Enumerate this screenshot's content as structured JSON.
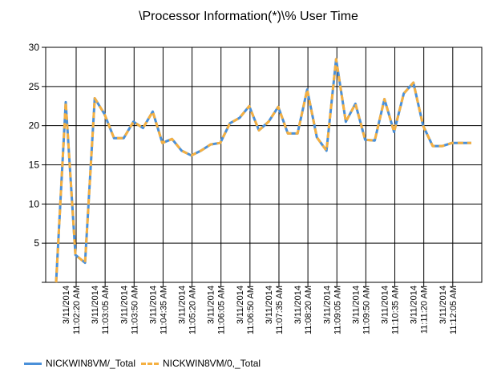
{
  "chart_data": {
    "type": "line",
    "title": "\\Processor Information(*)\\% User Time",
    "xlabel": "",
    "ylabel": "",
    "ylim": [
      0,
      30
    ],
    "yticks": [
      5,
      10,
      15,
      20,
      25,
      30
    ],
    "grid": true,
    "legend_placement": "bottom-left",
    "x": [
      "11:01:20",
      "11:01:35",
      "11:01:50",
      "11:02:05",
      "11:02:20",
      "11:02:35",
      "11:02:50",
      "11:03:05",
      "11:03:20",
      "11:03:35",
      "11:03:50",
      "11:04:05",
      "11:04:20",
      "11:04:35",
      "11:04:50",
      "11:05:05",
      "11:05:20",
      "11:05:35",
      "11:05:50",
      "11:06:05",
      "11:06:20",
      "11:06:35",
      "11:06:50",
      "11:07:05",
      "11:07:20",
      "11:07:35",
      "11:07:50",
      "11:08:05",
      "11:08:20",
      "11:08:35",
      "11:08:50",
      "11:09:05",
      "11:09:20",
      "11:09:35",
      "11:09:50",
      "11:10:05",
      "11:10:20",
      "11:10:35",
      "11:10:50",
      "11:11:05",
      "11:11:20",
      "11:11:35",
      "11:11:50",
      "11:12:05"
    ],
    "tick_labels": [
      {
        "date": "3/11/2014",
        "time": "11:02:20 AM"
      },
      {
        "date": "3/11/2014",
        "time": "11:03:05 AM"
      },
      {
        "date": "3/11/2014",
        "time": "11:03:50 AM"
      },
      {
        "date": "3/11/2014",
        "time": "11:04:35 AM"
      },
      {
        "date": "3/11/2014",
        "time": "11:05:20 AM"
      },
      {
        "date": "3/11/2014",
        "time": "11:06:05 AM"
      },
      {
        "date": "3/11/2014",
        "time": "11:06:50 AM"
      },
      {
        "date": "3/11/2014",
        "time": "11:07:35 AM"
      },
      {
        "date": "3/11/2014",
        "time": "11:08:20 AM"
      },
      {
        "date": "3/11/2014",
        "time": "11:09:05 AM"
      },
      {
        "date": "3/11/2014",
        "time": "11:09:50 AM"
      },
      {
        "date": "3/11/2014",
        "time": "11:10:35 AM"
      },
      {
        "date": "3/11/2014",
        "time": "11:11:20 AM"
      },
      {
        "date": "3/11/2014",
        "time": "11:12:05 AM"
      }
    ],
    "series": [
      {
        "name": "NICKWIN8VM/_Total",
        "color": "#4a90d9",
        "style": "solid",
        "values": [
          0,
          23,
          3.5,
          2.5,
          23.5,
          21.5,
          18.4,
          18.4,
          20.5,
          19.7,
          21.8,
          17.8,
          18.3,
          16.8,
          16.2,
          16.8,
          17.6,
          17.8,
          20.3,
          21.0,
          22.5,
          19.4,
          20.5,
          22.4,
          19.0,
          19.0,
          24.6,
          18.5,
          16.8,
          28.5,
          20.5,
          22.8,
          18.2,
          18.1,
          23.4,
          19.2,
          24.1,
          25.5,
          20.0,
          17.4,
          17.4,
          17.8,
          17.8,
          17.8
        ]
      },
      {
        "name": "NICKWIN8VM/0,_Total",
        "color": "#f5b041",
        "style": "dashed",
        "values": [
          0,
          23,
          3.5,
          2.5,
          23.5,
          21.5,
          18.4,
          18.4,
          20.5,
          19.7,
          21.8,
          17.8,
          18.3,
          16.8,
          16.2,
          16.8,
          17.6,
          17.8,
          20.3,
          21.0,
          22.5,
          19.4,
          20.5,
          22.4,
          19.0,
          19.0,
          24.6,
          18.5,
          16.8,
          28.5,
          20.5,
          22.8,
          18.2,
          18.1,
          23.4,
          19.2,
          24.1,
          25.5,
          20.0,
          17.4,
          17.4,
          17.8,
          17.8,
          17.8
        ]
      }
    ]
  }
}
